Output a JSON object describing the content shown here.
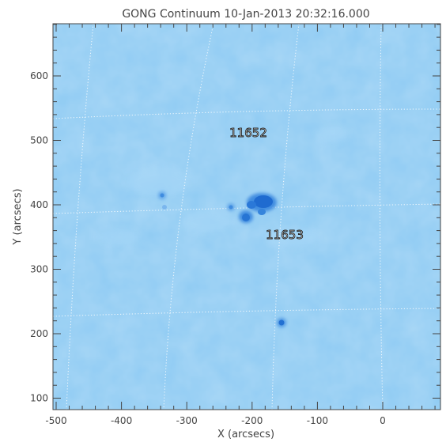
{
  "title": "GONG Continuum 10-Jan-2013 20:32:16.000",
  "x_axis": {
    "label": "X (arcsecs)",
    "ticks": [
      "-500",
      "-400",
      "-300",
      "-200",
      "-100",
      "0"
    ]
  },
  "y_axis": {
    "label": "Y (arcsecs)",
    "ticks": [
      "100",
      "200",
      "300",
      "400",
      "500",
      "600"
    ]
  },
  "region_labels": [
    {
      "text": "11652"
    },
    {
      "text": "11653"
    }
  ],
  "colors": {
    "background": "#8FCBF3",
    "spot_dark": "#1F6BD0",
    "grid": "#ffffff"
  }
}
